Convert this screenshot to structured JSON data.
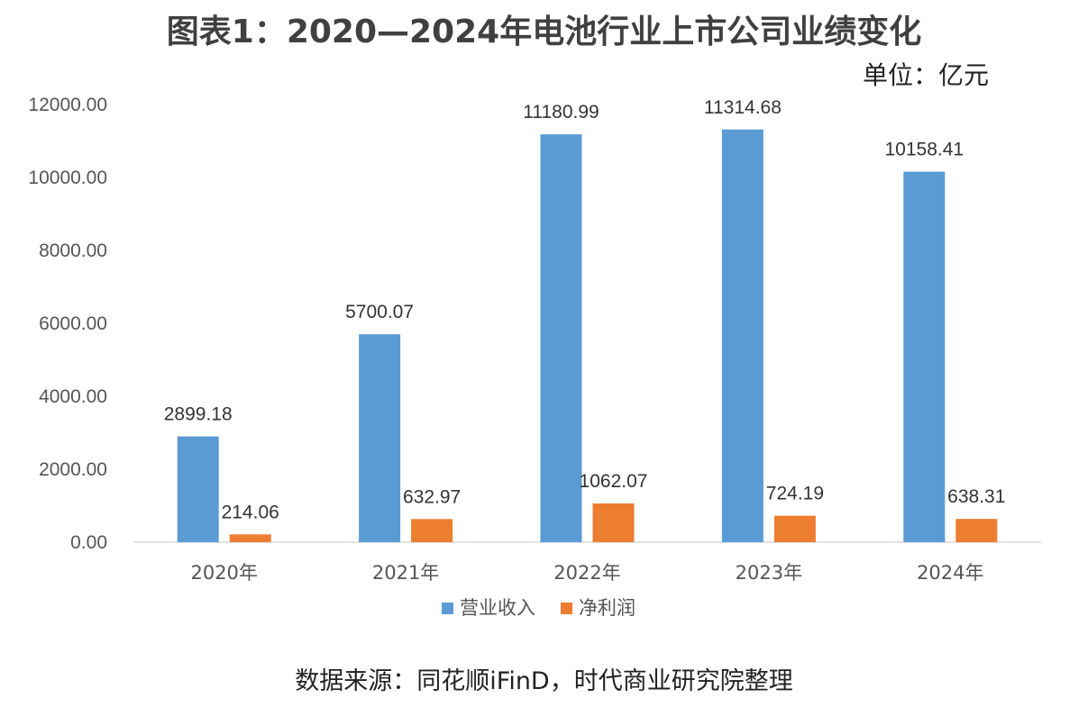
{
  "title": "图表1：2020—2024年电池行业上市公司业绩变化",
  "unit": "单位：亿元",
  "source": "数据来源：同花顺iFinD，时代商业研究院整理",
  "colors": {
    "revenue": "#5B9BD5",
    "profit": "#ED7D31",
    "axis": "#D9D9D9"
  },
  "chart_data": {
    "type": "bar",
    "categories": [
      "2020年",
      "2021年",
      "2022年",
      "2023年",
      "2024年"
    ],
    "series": [
      {
        "name": "营业收入",
        "values": [
          2899.18,
          5700.07,
          11180.99,
          11314.68,
          10158.41
        ],
        "labels": [
          "2899.18",
          "5700.07",
          "11180.99",
          "11314.68",
          "10158.41"
        ]
      },
      {
        "name": "净利润",
        "values": [
          214.06,
          632.97,
          1062.07,
          724.19,
          638.31
        ],
        "labels": [
          "214.06",
          "632.97",
          "1062.07",
          "724.19",
          "638.31"
        ]
      }
    ],
    "ylim": [
      0,
      12000
    ],
    "yticks": [
      0,
      2000,
      4000,
      6000,
      8000,
      10000,
      12000
    ],
    "ytick_labels": [
      "0.00",
      "2000.00",
      "4000.00",
      "6000.00",
      "8000.00",
      "10000.00",
      "12000.00"
    ],
    "grid": false,
    "legend": "bottom-center"
  }
}
